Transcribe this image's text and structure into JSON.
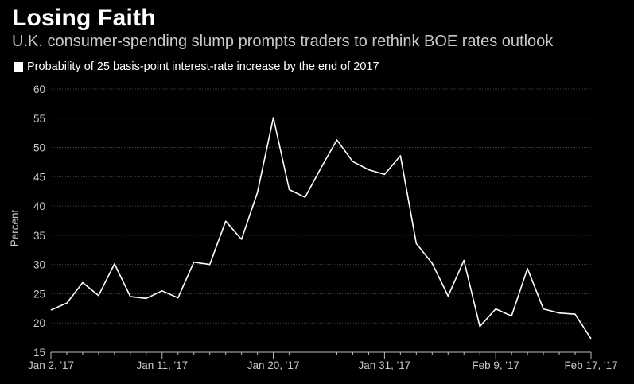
{
  "chart_data": {
    "type": "line",
    "title": "Losing Faith",
    "subtitle": "U.K. consumer-spending slump prompts traders to rethink BOE rates outlook",
    "legend": [
      {
        "label": "Probability of 25 basis-point interest-rate increase by the end of 2017",
        "color": "#ffffff"
      }
    ],
    "ylabel": "Percent",
    "xlabel": "",
    "ylim": [
      15,
      60
    ],
    "yticks": [
      15,
      20,
      25,
      30,
      35,
      40,
      45,
      50,
      55,
      60
    ],
    "xtick_labels": [
      "Jan 2, '17",
      "Jan 11, '17",
      "Jan 20, '17",
      "Jan 31, '17",
      "Feb 9, '17",
      "Feb 17, '17"
    ],
    "xtick_index": [
      0,
      7,
      14,
      21,
      28,
      34
    ],
    "grid": true,
    "series": [
      {
        "name": "Probability of 25 basis-point interest-rate increase by the end of 2017",
        "color": "#ffffff",
        "values": [
          22.2,
          23.4,
          26.9,
          24.7,
          30.1,
          24.5,
          24.2,
          25.5,
          24.3,
          30.4,
          30.0,
          37.4,
          34.3,
          42.3,
          55.1,
          42.8,
          41.5,
          46.5,
          51.3,
          47.6,
          46.2,
          45.4,
          48.6,
          33.6,
          30.2,
          24.6,
          30.7,
          19.4,
          22.4,
          21.2,
          29.3,
          22.4,
          21.7,
          21.5,
          17.3
        ]
      }
    ]
  }
}
